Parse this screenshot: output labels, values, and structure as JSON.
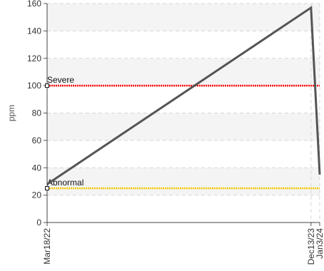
{
  "chart_data": {
    "type": "line",
    "ylabel": "ppm",
    "xlabel": "",
    "ylim": [
      0,
      160
    ],
    "yticks": [
      0,
      20,
      40,
      60,
      80,
      100,
      120,
      140,
      160
    ],
    "x": [
      "Mar18/22",
      "Dec13/23",
      "Jan3/24"
    ],
    "x_dates": [
      "2022-03-18",
      "2023-12-13",
      "2024-01-03"
    ],
    "series": [
      {
        "values": [
          28,
          157,
          35
        ],
        "color": "#555555"
      }
    ],
    "thresholds": [
      {
        "label": "Severe",
        "value": 100,
        "color": "#ff0000"
      },
      {
        "label": "Abnormal",
        "value": 25,
        "color": "#f2c800"
      }
    ],
    "grid": true,
    "legend": "none"
  }
}
